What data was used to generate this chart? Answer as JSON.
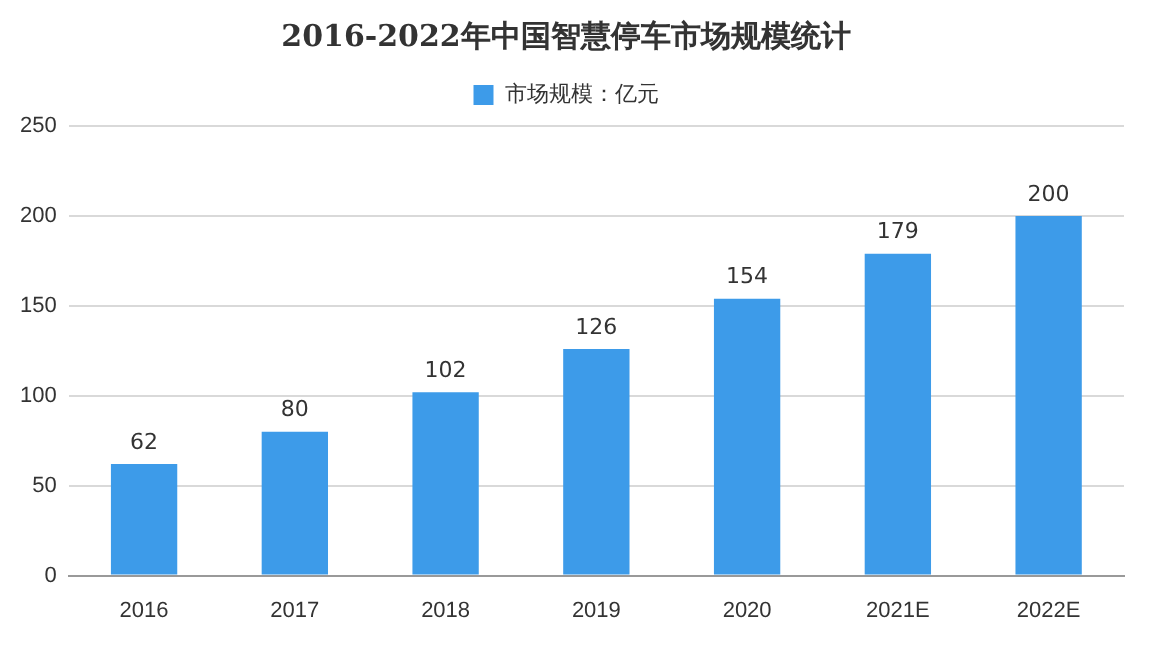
{
  "chart_data": {
    "type": "bar",
    "title": "2016-2022年中国智慧停车市场规模统计",
    "categories": [
      "2016",
      "2017",
      "2018",
      "2019",
      "2020",
      "2021E",
      "2022E"
    ],
    "series": [
      {
        "name": "市场规模：亿元",
        "color": "#3d9be9",
        "values": [
          62,
          80,
          102,
          126,
          154,
          179,
          200
        ]
      }
    ],
    "ylim": [
      0,
      250
    ],
    "yticks": [
      0,
      50,
      100,
      150,
      200,
      250
    ],
    "grid": "y",
    "legend": "top",
    "data_labels": true
  }
}
